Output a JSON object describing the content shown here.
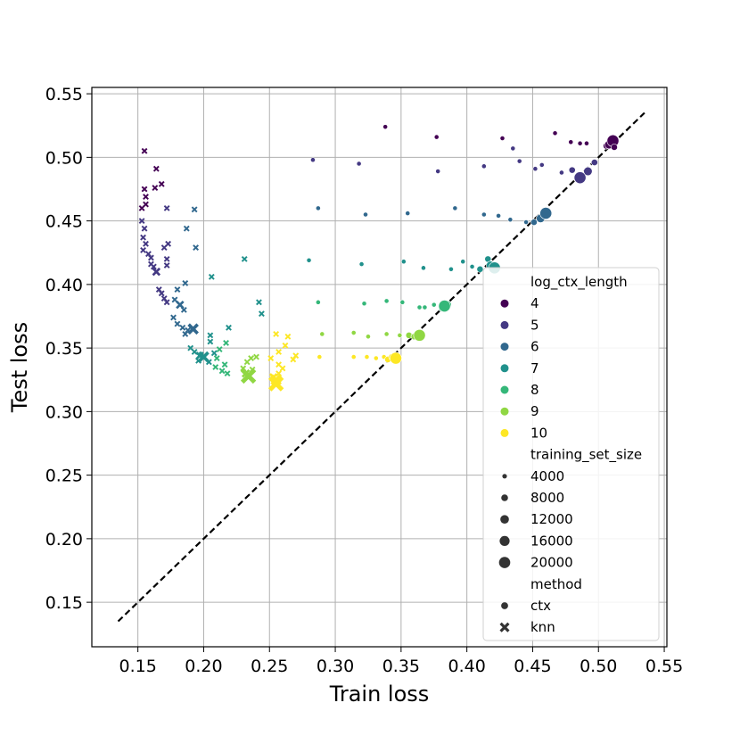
{
  "chart_data": {
    "type": "scatter",
    "title": "",
    "xlabel": "Train loss",
    "ylabel": "Test loss",
    "xlim": [
      0.115,
      0.552
    ],
    "ylim": [
      0.115,
      0.555
    ],
    "xticks": [
      "0.15",
      "0.20",
      "0.25",
      "0.30",
      "0.35",
      "0.40",
      "0.45",
      "0.50",
      "0.55"
    ],
    "yticks": [
      "0.15",
      "0.20",
      "0.25",
      "0.30",
      "0.35",
      "0.40",
      "0.45",
      "0.50",
      "0.55"
    ],
    "grid": true,
    "legend_position": "lower-right",
    "reference_line": {
      "style": "dashed",
      "color": "#000000",
      "from": [
        0.135,
        0.135
      ],
      "to": [
        0.535,
        0.535
      ]
    },
    "hue": {
      "title": "log_ctx_length",
      "levels": [
        {
          "label": "4",
          "color": "#440154"
        },
        {
          "label": "5",
          "color": "#443983"
        },
        {
          "label": "6",
          "color": "#31688e"
        },
        {
          "label": "7",
          "color": "#21918c"
        },
        {
          "label": "8",
          "color": "#35b779"
        },
        {
          "label": "9",
          "color": "#90d743"
        },
        {
          "label": "10",
          "color": "#fde725"
        }
      ]
    },
    "size": {
      "title": "training_set_size",
      "levels": [
        "4000",
        "8000",
        "12000",
        "16000",
        "20000"
      ]
    },
    "style": {
      "title": "method",
      "levels": [
        {
          "label": "ctx",
          "marker": "circle"
        },
        {
          "label": "knn",
          "marker": "x"
        }
      ]
    },
    "series": [
      {
        "name": "4",
        "method": "ctx",
        "points": [
          [
            0.338,
            0.524,
            4000
          ],
          [
            0.377,
            0.516,
            4000
          ],
          [
            0.427,
            0.515,
            4000
          ],
          [
            0.467,
            0.519,
            4000
          ],
          [
            0.479,
            0.512,
            4000
          ],
          [
            0.486,
            0.511,
            4000
          ],
          [
            0.491,
            0.511,
            4000
          ],
          [
            0.506,
            0.509,
            8000
          ],
          [
            0.508,
            0.51,
            12000
          ],
          [
            0.511,
            0.513,
            20000
          ],
          [
            0.512,
            0.508,
            8000
          ]
        ]
      },
      {
        "name": "5",
        "method": "ctx",
        "points": [
          [
            0.283,
            0.498,
            4000
          ],
          [
            0.318,
            0.495,
            4000
          ],
          [
            0.378,
            0.489,
            4000
          ],
          [
            0.413,
            0.493,
            4000
          ],
          [
            0.435,
            0.507,
            4000
          ],
          [
            0.44,
            0.497,
            4000
          ],
          [
            0.452,
            0.491,
            4000
          ],
          [
            0.457,
            0.494,
            4000
          ],
          [
            0.472,
            0.488,
            4000
          ],
          [
            0.48,
            0.49,
            8000
          ],
          [
            0.486,
            0.484,
            20000
          ],
          [
            0.492,
            0.489,
            12000
          ],
          [
            0.497,
            0.496,
            8000
          ]
        ]
      },
      {
        "name": "6",
        "method": "ctx",
        "points": [
          [
            0.287,
            0.46,
            4000
          ],
          [
            0.323,
            0.455,
            4000
          ],
          [
            0.355,
            0.456,
            4000
          ],
          [
            0.391,
            0.46,
            4000
          ],
          [
            0.413,
            0.455,
            4000
          ],
          [
            0.424,
            0.454,
            4000
          ],
          [
            0.433,
            0.451,
            4000
          ],
          [
            0.445,
            0.449,
            4000
          ],
          [
            0.451,
            0.449,
            8000
          ],
          [
            0.456,
            0.452,
            12000
          ],
          [
            0.46,
            0.456,
            20000
          ]
        ]
      },
      {
        "name": "7",
        "method": "ctx",
        "points": [
          [
            0.28,
            0.419,
            4000
          ],
          [
            0.32,
            0.416,
            4000
          ],
          [
            0.352,
            0.418,
            4000
          ],
          [
            0.367,
            0.413,
            4000
          ],
          [
            0.388,
            0.412,
            4000
          ],
          [
            0.397,
            0.418,
            4000
          ],
          [
            0.404,
            0.414,
            4000
          ],
          [
            0.41,
            0.412,
            8000
          ],
          [
            0.416,
            0.42,
            8000
          ],
          [
            0.418,
            0.415,
            12000
          ],
          [
            0.421,
            0.413,
            20000
          ]
        ]
      },
      {
        "name": "8",
        "method": "ctx",
        "points": [
          [
            0.287,
            0.386,
            4000
          ],
          [
            0.322,
            0.385,
            4000
          ],
          [
            0.339,
            0.387,
            4000
          ],
          [
            0.351,
            0.386,
            4000
          ],
          [
            0.364,
            0.382,
            4000
          ],
          [
            0.368,
            0.382,
            4000
          ],
          [
            0.375,
            0.384,
            4000
          ],
          [
            0.381,
            0.381,
            8000
          ],
          [
            0.385,
            0.384,
            12000
          ],
          [
            0.383,
            0.383,
            20000
          ]
        ]
      },
      {
        "name": "9",
        "method": "ctx",
        "points": [
          [
            0.29,
            0.361,
            4000
          ],
          [
            0.314,
            0.362,
            4000
          ],
          [
            0.325,
            0.359,
            4000
          ],
          [
            0.339,
            0.361,
            4000
          ],
          [
            0.349,
            0.36,
            4000
          ],
          [
            0.356,
            0.36,
            8000
          ],
          [
            0.36,
            0.359,
            8000
          ],
          [
            0.364,
            0.36,
            20000
          ]
        ]
      },
      {
        "name": "10",
        "method": "ctx",
        "points": [
          [
            0.288,
            0.343,
            4000
          ],
          [
            0.314,
            0.343,
            4000
          ],
          [
            0.324,
            0.343,
            4000
          ],
          [
            0.331,
            0.342,
            4000
          ],
          [
            0.337,
            0.343,
            4000
          ],
          [
            0.34,
            0.341,
            8000
          ],
          [
            0.343,
            0.343,
            8000
          ],
          [
            0.346,
            0.342,
            20000
          ]
        ]
      },
      {
        "name": "4",
        "method": "knn",
        "points": [
          [
            0.155,
            0.505,
            4000
          ],
          [
            0.164,
            0.491,
            4000
          ],
          [
            0.168,
            0.479,
            4000
          ],
          [
            0.163,
            0.476,
            4000
          ],
          [
            0.155,
            0.475,
            4000
          ],
          [
            0.156,
            0.469,
            4000
          ],
          [
            0.153,
            0.46,
            4000
          ],
          [
            0.156,
            0.463,
            4000
          ]
        ]
      },
      {
        "name": "5",
        "method": "knn",
        "points": [
          [
            0.172,
            0.46,
            4000
          ],
          [
            0.153,
            0.45,
            4000
          ],
          [
            0.155,
            0.444,
            4000
          ],
          [
            0.154,
            0.437,
            4000
          ],
          [
            0.156,
            0.432,
            4000
          ],
          [
            0.154,
            0.427,
            4000
          ],
          [
            0.158,
            0.424,
            4000
          ],
          [
            0.16,
            0.421,
            4000
          ],
          [
            0.16,
            0.416,
            4000
          ],
          [
            0.162,
            0.414,
            4000
          ],
          [
            0.164,
            0.41,
            8000
          ],
          [
            0.173,
            0.432,
            4000
          ],
          [
            0.17,
            0.429,
            4000
          ],
          [
            0.172,
            0.42,
            4000
          ],
          [
            0.172,
            0.415,
            4000
          ],
          [
            0.166,
            0.396,
            4000
          ],
          [
            0.168,
            0.393,
            4000
          ],
          [
            0.17,
            0.389,
            4000
          ],
          [
            0.172,
            0.386,
            4000
          ]
        ]
      },
      {
        "name": "6",
        "method": "knn",
        "points": [
          [
            0.193,
            0.459,
            4000
          ],
          [
            0.187,
            0.444,
            4000
          ],
          [
            0.194,
            0.429,
            4000
          ],
          [
            0.186,
            0.401,
            4000
          ],
          [
            0.18,
            0.396,
            4000
          ],
          [
            0.178,
            0.388,
            4000
          ],
          [
            0.182,
            0.384,
            8000
          ],
          [
            0.185,
            0.38,
            4000
          ],
          [
            0.177,
            0.374,
            4000
          ],
          [
            0.18,
            0.369,
            4000
          ],
          [
            0.184,
            0.366,
            4000
          ],
          [
            0.188,
            0.364,
            4000
          ],
          [
            0.192,
            0.365,
            12000
          ],
          [
            0.186,
            0.361,
            4000
          ]
        ]
      },
      {
        "name": "7",
        "method": "knn",
        "points": [
          [
            0.231,
            0.42,
            4000
          ],
          [
            0.206,
            0.406,
            4000
          ],
          [
            0.242,
            0.386,
            4000
          ],
          [
            0.244,
            0.377,
            4000
          ],
          [
            0.219,
            0.366,
            4000
          ],
          [
            0.205,
            0.36,
            4000
          ],
          [
            0.205,
            0.355,
            4000
          ],
          [
            0.19,
            0.35,
            4000
          ],
          [
            0.193,
            0.347,
            4000
          ],
          [
            0.197,
            0.344,
            8000
          ],
          [
            0.2,
            0.343,
            12000
          ],
          [
            0.196,
            0.34,
            4000
          ],
          [
            0.204,
            0.339,
            4000
          ],
          [
            0.208,
            0.346,
            4000
          ]
        ]
      },
      {
        "name": "8",
        "method": "knn",
        "points": [
          [
            0.217,
            0.354,
            4000
          ],
          [
            0.212,
            0.349,
            4000
          ],
          [
            0.21,
            0.342,
            4000
          ],
          [
            0.209,
            0.335,
            4000
          ],
          [
            0.214,
            0.332,
            4000
          ],
          [
            0.218,
            0.33,
            4000
          ],
          [
            0.216,
            0.337,
            4000
          ]
        ]
      },
      {
        "name": "9",
        "method": "knn",
        "points": [
          [
            0.236,
            0.342,
            4000
          ],
          [
            0.233,
            0.339,
            4000
          ],
          [
            0.23,
            0.334,
            4000
          ],
          [
            0.232,
            0.33,
            8000
          ],
          [
            0.234,
            0.328,
            20000
          ],
          [
            0.237,
            0.333,
            4000
          ],
          [
            0.24,
            0.343,
            4000
          ]
        ]
      },
      {
        "name": "10",
        "method": "knn",
        "points": [
          [
            0.255,
            0.361,
            4000
          ],
          [
            0.264,
            0.359,
            4000
          ],
          [
            0.262,
            0.352,
            4000
          ],
          [
            0.257,
            0.347,
            4000
          ],
          [
            0.251,
            0.342,
            4000
          ],
          [
            0.257,
            0.337,
            4000
          ],
          [
            0.26,
            0.334,
            4000
          ],
          [
            0.257,
            0.33,
            4000
          ],
          [
            0.253,
            0.327,
            8000
          ],
          [
            0.255,
            0.325,
            12000
          ],
          [
            0.255,
            0.322,
            20000
          ],
          [
            0.27,
            0.344,
            4000
          ],
          [
            0.268,
            0.341,
            4000
          ]
        ]
      }
    ]
  }
}
